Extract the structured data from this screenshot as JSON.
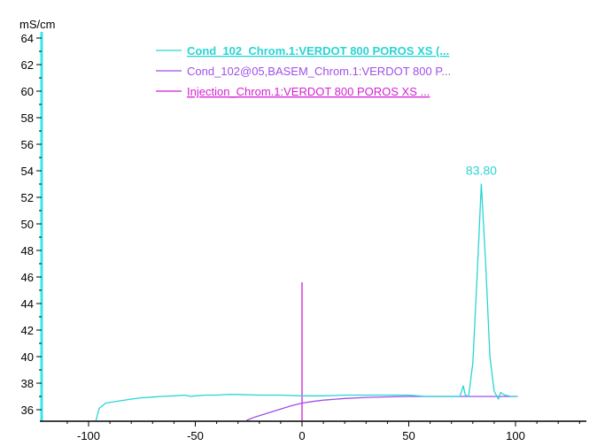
{
  "chart_data": {
    "type": "line",
    "ylabel": "mS/cm",
    "xlabel": "",
    "xlim": [
      -115,
      145
    ],
    "ylim": [
      35.2,
      64.2
    ],
    "x_ticks": [
      -100,
      -50,
      0,
      50,
      100
    ],
    "y_ticks": [
      36,
      38,
      40,
      42,
      44,
      46,
      48,
      50,
      52,
      54,
      56,
      58,
      60,
      62,
      64
    ],
    "grid": false,
    "legend_position": "top",
    "axis_color": "#39e6e6",
    "series": [
      {
        "name": "Cond_102_Chrom.1:VERDOT 800 POROS XS (...",
        "color": "#2ad4d4",
        "legend_style": "bold-underline",
        "x": [
          -96.5,
          -95,
          -92,
          -88,
          -84,
          -80,
          -75,
          -70,
          -66,
          -60,
          -55,
          -52,
          -50,
          -45,
          -40,
          -35,
          -30,
          -20,
          -10,
          0,
          10,
          20,
          30,
          40,
          50,
          58,
          60,
          62,
          70,
          74,
          75.5,
          76.5,
          78,
          80,
          82,
          84,
          86,
          88,
          90,
          92,
          93,
          95,
          98,
          100,
          101
        ],
        "y": [
          35.2,
          36.1,
          36.5,
          36.6,
          36.7,
          36.8,
          36.9,
          36.95,
          37.0,
          37.05,
          37.1,
          37.0,
          37.05,
          37.1,
          37.1,
          37.15,
          37.15,
          37.1,
          37.1,
          37.05,
          37.05,
          37.1,
          37.1,
          37.1,
          37.1,
          37.0,
          37.0,
          37.0,
          37.0,
          37.0,
          37.8,
          37.1,
          37.0,
          39.5,
          46.0,
          53.0,
          47.0,
          40.0,
          37.4,
          36.8,
          37.3,
          37.1,
          37.0,
          37.0,
          37.0
        ]
      },
      {
        "name": "Cond_102@05,BASEM_Chrom.1:VERDOT 800 P...",
        "color": "#a04fe8",
        "legend_style": "normal",
        "x": [
          -26,
          -22,
          -16,
          -10,
          -5,
          0,
          5,
          10,
          20,
          30,
          40,
          50,
          60,
          70,
          80,
          90,
          101
        ],
        "y": [
          35.2,
          35.45,
          35.75,
          36.05,
          36.3,
          36.5,
          36.62,
          36.72,
          36.85,
          36.93,
          36.97,
          37.0,
          37.0,
          37.0,
          37.0,
          37.0,
          37.0
        ]
      },
      {
        "name": "Injection_Chrom.1:VERDOT 800 POROS XS ...",
        "color": "#d41fd4",
        "legend_style": "underline",
        "x": [
          0,
          0
        ],
        "y": [
          35.2,
          45.6
        ]
      }
    ],
    "annotations": [
      {
        "text": "83.80",
        "x": 84,
        "y": 53.7,
        "color": "#2ad4d4"
      }
    ]
  }
}
